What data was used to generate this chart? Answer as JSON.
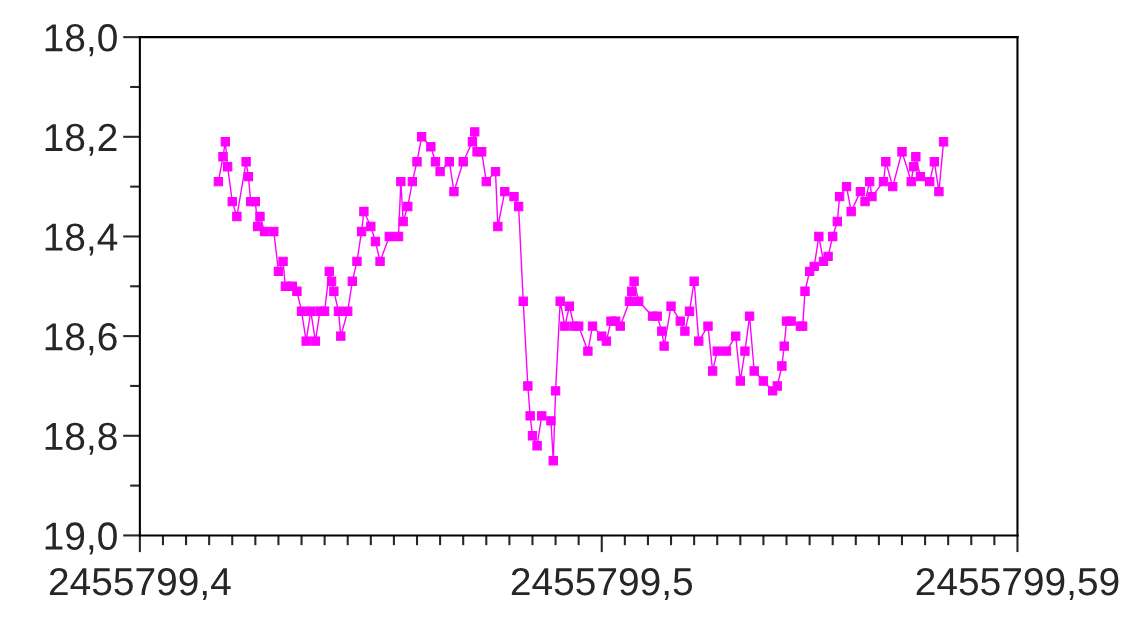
{
  "chart_data": {
    "type": "line",
    "marker": "square",
    "line_style": "solid",
    "grid": false,
    "legend": false,
    "xlim": [
      2455799.4,
      2455799.59
    ],
    "ylim": [
      19.0,
      18.0
    ],
    "xticks": [
      {
        "value": 2455799.4,
        "label": "2455799,4"
      },
      {
        "value": 2455799.405,
        "label": null
      },
      {
        "value": 2455799.41,
        "label": null
      },
      {
        "value": 2455799.415,
        "label": null
      },
      {
        "value": 2455799.42,
        "label": null
      },
      {
        "value": 2455799.425,
        "label": null
      },
      {
        "value": 2455799.43,
        "label": null
      },
      {
        "value": 2455799.435,
        "label": null
      },
      {
        "value": 2455799.44,
        "label": null
      },
      {
        "value": 2455799.445,
        "label": null
      },
      {
        "value": 2455799.45,
        "label": null
      },
      {
        "value": 2455799.455,
        "label": null
      },
      {
        "value": 2455799.46,
        "label": null
      },
      {
        "value": 2455799.465,
        "label": null
      },
      {
        "value": 2455799.47,
        "label": null
      },
      {
        "value": 2455799.475,
        "label": null
      },
      {
        "value": 2455799.48,
        "label": null
      },
      {
        "value": 2455799.485,
        "label": null
      },
      {
        "value": 2455799.49,
        "label": null
      },
      {
        "value": 2455799.495,
        "label": null
      },
      {
        "value": 2455799.5,
        "label": "2455799,5"
      },
      {
        "value": 2455799.505,
        "label": null
      },
      {
        "value": 2455799.51,
        "label": null
      },
      {
        "value": 2455799.515,
        "label": null
      },
      {
        "value": 2455799.52,
        "label": null
      },
      {
        "value": 2455799.525,
        "label": null
      },
      {
        "value": 2455799.53,
        "label": null
      },
      {
        "value": 2455799.535,
        "label": null
      },
      {
        "value": 2455799.54,
        "label": null
      },
      {
        "value": 2455799.545,
        "label": null
      },
      {
        "value": 2455799.55,
        "label": null
      },
      {
        "value": 2455799.555,
        "label": null
      },
      {
        "value": 2455799.56,
        "label": null
      },
      {
        "value": 2455799.565,
        "label": null
      },
      {
        "value": 2455799.57,
        "label": null
      },
      {
        "value": 2455799.575,
        "label": null
      },
      {
        "value": 2455799.58,
        "label": null
      },
      {
        "value": 2455799.585,
        "label": null
      },
      {
        "value": 2455799.59,
        "label": "2455799,59"
      }
    ],
    "yticks": [
      {
        "value": 18.0,
        "label": "18,0"
      },
      {
        "value": 18.1,
        "label": null
      },
      {
        "value": 18.2,
        "label": "18,2"
      },
      {
        "value": 18.3,
        "label": null
      },
      {
        "value": 18.4,
        "label": "18,4"
      },
      {
        "value": 18.5,
        "label": null
      },
      {
        "value": 18.6,
        "label": "18,6"
      },
      {
        "value": 18.7,
        "label": null
      },
      {
        "value": 18.8,
        "label": "18,8"
      },
      {
        "value": 18.9,
        "label": null
      },
      {
        "value": 19.0,
        "label": "19,0"
      }
    ],
    "series": [
      {
        "color": "#ff00ff",
        "x": [
          2455799.417,
          2455799.418,
          2455799.4185,
          2455799.419,
          2455799.42,
          2455799.421,
          2455799.423,
          2455799.4235,
          2455799.424,
          2455799.425,
          2455799.4255,
          2455799.426,
          2455799.427,
          2455799.429,
          2455799.43,
          2455799.431,
          2455799.4315,
          2455799.433,
          2455799.434,
          2455799.435,
          2455799.436,
          2455799.437,
          2455799.438,
          2455799.439,
          2455799.44,
          2455799.441,
          2455799.4415,
          2455799.442,
          2455799.443,
          2455799.4435,
          2455799.445,
          2455799.446,
          2455799.447,
          2455799.448,
          2455799.4485,
          2455799.45,
          2455799.451,
          2455799.452,
          2455799.454,
          2455799.456,
          2455799.4565,
          2455799.457,
          2455799.458,
          2455799.459,
          2455799.46,
          2455799.461,
          2455799.463,
          2455799.464,
          2455799.465,
          2455799.467,
          2455799.468,
          2455799.47,
          2455799.472,
          2455799.4725,
          2455799.473,
          2455799.474,
          2455799.475,
          2455799.477,
          2455799.4775,
          2455799.479,
          2455799.481,
          2455799.482,
          2455799.483,
          2455799.484,
          2455799.4845,
          2455799.485,
          2455799.486,
          2455799.487,
          2455799.489,
          2455799.4895,
          2455799.49,
          2455799.491,
          2455799.492,
          2455799.493,
          2455799.494,
          2455799.495,
          2455799.497,
          2455799.498,
          2455799.5,
          2455799.501,
          2455799.502,
          2455799.503,
          2455799.504,
          2455799.506,
          2455799.5065,
          2455799.507,
          2455799.508,
          2455799.511,
          2455799.512,
          2455799.513,
          2455799.5135,
          2455799.515,
          2455799.517,
          2455799.518,
          2455799.519,
          2455799.52,
          2455799.521,
          2455799.523,
          2455799.524,
          2455799.525,
          2455799.527,
          2455799.529,
          2455799.53,
          2455799.531,
          2455799.532,
          2455799.533,
          2455799.535,
          2455799.537,
          2455799.538,
          2455799.539,
          2455799.5395,
          2455799.54,
          2455799.541,
          2455799.543,
          2455799.5435,
          2455799.544,
          2455799.545,
          2455799.546,
          2455799.547,
          2455799.548,
          2455799.549,
          2455799.55,
          2455799.551,
          2455799.5515,
          2455799.553,
          2455799.554,
          2455799.556,
          2455799.557,
          2455799.558,
          2455799.5585,
          2455799.561,
          2455799.5615,
          2455799.563,
          2455799.565,
          2455799.567,
          2455799.5675,
          2455799.568,
          2455799.569,
          2455799.571,
          2455799.572,
          2455799.573,
          2455799.574
        ],
        "values": [
          18.29,
          18.24,
          18.21,
          18.26,
          18.33,
          18.36,
          18.25,
          18.28,
          18.33,
          18.33,
          18.38,
          18.36,
          18.39,
          18.39,
          18.47,
          18.45,
          18.5,
          18.5,
          18.51,
          18.55,
          18.61,
          18.55,
          18.61,
          18.55,
          18.55,
          18.47,
          18.49,
          18.51,
          18.55,
          18.6,
          18.55,
          18.49,
          18.45,
          18.39,
          18.35,
          18.38,
          18.41,
          18.45,
          18.4,
          18.4,
          18.29,
          18.37,
          18.34,
          18.29,
          18.25,
          18.2,
          18.22,
          18.25,
          18.27,
          18.25,
          18.31,
          18.25,
          18.21,
          18.19,
          18.23,
          18.23,
          18.29,
          18.27,
          18.38,
          18.31,
          18.32,
          18.34,
          18.53,
          18.7,
          18.76,
          18.8,
          18.82,
          18.76,
          18.77,
          18.85,
          18.71,
          18.53,
          18.58,
          18.54,
          18.58,
          18.58,
          18.63,
          18.58,
          18.6,
          18.61,
          18.57,
          18.57,
          18.58,
          18.53,
          18.51,
          18.49,
          18.53,
          18.56,
          18.56,
          18.59,
          18.62,
          18.54,
          18.57,
          18.59,
          18.55,
          18.49,
          18.61,
          18.58,
          18.67,
          18.63,
          18.63,
          18.6,
          18.69,
          18.63,
          18.56,
          18.67,
          18.69,
          18.71,
          18.7,
          18.66,
          18.62,
          18.57,
          18.57,
          18.58,
          18.58,
          18.51,
          18.47,
          18.46,
          18.4,
          18.45,
          18.44,
          18.4,
          18.37,
          18.32,
          18.3,
          18.35,
          18.31,
          18.33,
          18.29,
          18.32,
          18.29,
          18.25,
          18.3,
          18.23,
          18.29,
          18.26,
          18.24,
          18.28,
          18.29,
          18.25,
          18.31,
          18.21
        ]
      }
    ]
  }
}
